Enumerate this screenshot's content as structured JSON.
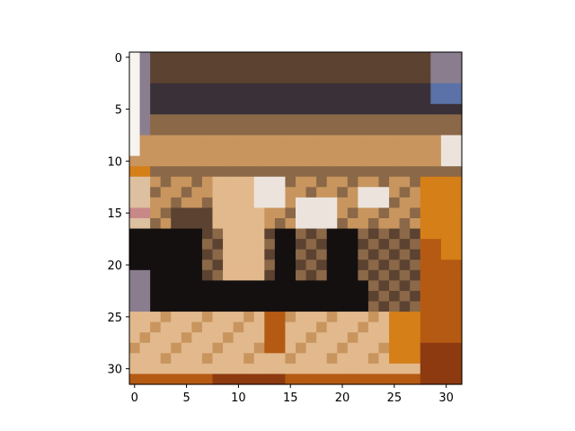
{
  "figure": {
    "type": "image",
    "description_visible_text": "",
    "image": {
      "grid_size": [
        32,
        32
      ],
      "content_hint": "low-resolution CIFAR-like photo of a brown pastry/food item on an orange/white background"
    },
    "axes": {
      "x_ticks": [
        {
          "value": 0,
          "label": "0"
        },
        {
          "value": 5,
          "label": "5"
        },
        {
          "value": 10,
          "label": "10"
        },
        {
          "value": 15,
          "label": "15"
        },
        {
          "value": 20,
          "label": "20"
        },
        {
          "value": 25,
          "label": "25"
        },
        {
          "value": 30,
          "label": "30"
        }
      ],
      "y_ticks": [
        {
          "value": 0,
          "label": "0"
        },
        {
          "value": 5,
          "label": "5"
        },
        {
          "value": 10,
          "label": "10"
        },
        {
          "value": 15,
          "label": "15"
        },
        {
          "value": 20,
          "label": "20"
        },
        {
          "value": 25,
          "label": "25"
        },
        {
          "value": 30,
          "label": "30"
        }
      ],
      "xlim": [
        -0.5,
        31.5
      ],
      "ylim": [
        31.5,
        -0.5
      ],
      "axis_color": "#000000"
    },
    "palette": {
      "background_white": "#f7f4f0",
      "cream": "#dcc0a0",
      "tan": "#c8955e",
      "light_tan": "#e2b98c",
      "brown": "#8a6848",
      "dark_brown": "#5c4230",
      "dark_band": "#3a3038",
      "navy": "#3a3a5a",
      "near_black": "#141010",
      "orange": "#d57f18",
      "rust": "#b55a12",
      "deep_rust": "#8e3a10",
      "white_highlight": "#ece4dc",
      "grey_purple": "#8a7e8e",
      "blue_patch": "#5a72a8",
      "pink": "#c88888"
    }
  }
}
